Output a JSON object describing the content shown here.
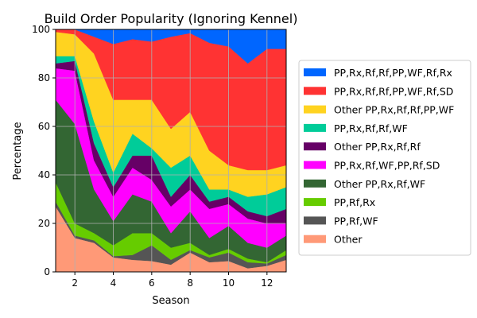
{
  "chart_data": {
    "type": "area",
    "stacked": true,
    "title": "Build Order Popularity (Ignoring Kennel)",
    "xlabel": "Season",
    "ylabel": "Percentage",
    "xlim": [
      1,
      13
    ],
    "ylim": [
      0,
      100
    ],
    "xticks": [
      2,
      4,
      6,
      8,
      10,
      12
    ],
    "yticks": [
      0,
      20,
      40,
      60,
      80,
      100
    ],
    "grid": true,
    "legend_position": "right",
    "x": [
      1,
      2,
      3,
      4,
      5,
      6,
      7,
      8,
      9,
      10,
      11,
      12,
      13
    ],
    "series": [
      {
        "name": "Other",
        "color": "#ff9977",
        "values": [
          27,
          14,
          12,
          6,
          5,
          4.5,
          3,
          8,
          4,
          4.5,
          1.5,
          2.5,
          5
        ]
      },
      {
        "name": "PP,Rf,WF",
        "color": "#555555",
        "values": [
          2,
          1,
          1,
          0.5,
          2,
          6.5,
          2,
          1,
          2,
          3.5,
          2.5,
          1,
          2
        ]
      },
      {
        "name": "PP,Rf,Rx",
        "color": "#66cc00",
        "values": [
          8,
          5,
          3,
          4.5,
          9,
          5,
          5,
          3,
          1,
          1.5,
          1.5,
          0.5,
          2
        ]
      },
      {
        "name": "Other PP,Rx,Rf,WF",
        "color": "#336633",
        "values": [
          34,
          41,
          18,
          10,
          16,
          13,
          6,
          13,
          7,
          9.5,
          6.5,
          6,
          6
        ]
      },
      {
        "name": "PP,Rx,Rf,WF,PP,Rf,SD",
        "color": "#ff00ff",
        "values": [
          13,
          22,
          12,
          10,
          11,
          9,
          11,
          9,
          12,
          9,
          10,
          10,
          5
        ]
      },
      {
        "name": "Other PP,Rx,Rf,Rf",
        "color": "#660066",
        "values": [
          2,
          4,
          7,
          4,
          5,
          10,
          4,
          6,
          3,
          3,
          3,
          3,
          6
        ]
      },
      {
        "name": "PP,Rx,Rf,Rf,WF",
        "color": "#00cc99",
        "values": [
          3,
          2,
          9,
          6,
          9,
          3,
          12,
          8,
          5,
          3,
          6,
          9,
          9
        ]
      },
      {
        "name": "Other PP,Rx,Rf,Rf,PP,WF",
        "color": "#ffd320",
        "values": [
          10,
          9,
          28,
          30,
          14,
          20,
          16,
          18,
          16,
          10,
          11,
          10,
          9
        ]
      },
      {
        "name": "PP,Rx,Rf,Rf,PP,WF,Rf,SD",
        "color": "#ff3333",
        "values": [
          1,
          2,
          7,
          23,
          25,
          24,
          38,
          32.5,
          44.5,
          49,
          44,
          50,
          48
        ]
      },
      {
        "name": "PP,Rx,Rf,Rf,PP,WF,Rf,Rx",
        "color": "#0066ff",
        "values": [
          0,
          0,
          3,
          6,
          4,
          5,
          3,
          1.5,
          5.5,
          7,
          14,
          8,
          8
        ]
      }
    ]
  }
}
